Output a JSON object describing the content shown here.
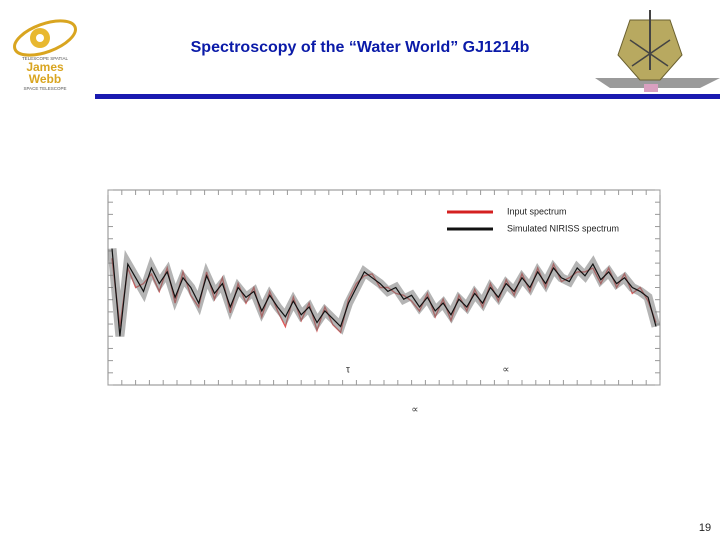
{
  "header": {
    "title": "Spectroscopy of the “Water World” GJ1214b"
  },
  "logo": {
    "top": "TELESCOPE SPATIAL",
    "name1": "James",
    "name2": "Webb",
    "bottom": "SPACE TELESCOPE"
  },
  "chart_data": {
    "type": "line",
    "ylim": [
      0,
      1
    ],
    "series": [
      {
        "name": "Input spectrum",
        "color": "#d42020",
        "values": [
          0.65,
          0.3,
          0.6,
          0.5,
          0.52,
          0.57,
          0.48,
          0.6,
          0.42,
          0.58,
          0.46,
          0.4,
          0.58,
          0.44,
          0.55,
          0.37,
          0.52,
          0.42,
          0.5,
          0.35,
          0.48,
          0.38,
          0.3,
          0.45,
          0.33,
          0.42,
          0.28,
          0.4,
          0.31,
          0.27,
          0.44,
          0.52,
          0.56,
          0.57,
          0.5,
          0.5,
          0.47,
          0.46,
          0.43,
          0.38,
          0.47,
          0.35,
          0.44,
          0.33,
          0.46,
          0.38,
          0.49,
          0.4,
          0.52,
          0.43,
          0.54,
          0.46,
          0.57,
          0.48,
          0.6,
          0.5,
          0.62,
          0.53,
          0.55,
          0.58,
          0.58,
          0.6,
          0.52,
          0.6,
          0.5,
          0.57,
          0.47,
          0.5,
          0.43,
          0.32
        ]
      },
      {
        "name": "Simulated NIRISS spectrum",
        "color": "#111111",
        "values": [
          0.7,
          0.25,
          0.62,
          0.55,
          0.48,
          0.6,
          0.52,
          0.58,
          0.45,
          0.55,
          0.5,
          0.42,
          0.56,
          0.47,
          0.52,
          0.4,
          0.5,
          0.45,
          0.48,
          0.38,
          0.46,
          0.4,
          0.35,
          0.43,
          0.36,
          0.4,
          0.32,
          0.38,
          0.34,
          0.3,
          0.42,
          0.5,
          0.58,
          0.55,
          0.52,
          0.48,
          0.5,
          0.44,
          0.46,
          0.4,
          0.45,
          0.38,
          0.42,
          0.36,
          0.44,
          0.4,
          0.47,
          0.42,
          0.5,
          0.45,
          0.52,
          0.48,
          0.55,
          0.5,
          0.58,
          0.52,
          0.6,
          0.55,
          0.53,
          0.6,
          0.56,
          0.62,
          0.54,
          0.58,
          0.52,
          0.55,
          0.5,
          0.48,
          0.45,
          0.3
        ]
      }
    ],
    "annotations": [
      "τ",
      "∝",
      "∝"
    ]
  },
  "page_number": "19"
}
